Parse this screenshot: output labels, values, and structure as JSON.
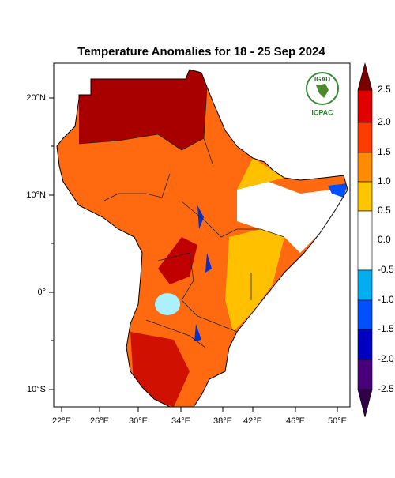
{
  "title": "Temperature Anomalies for 18 - 25 Sep 2024",
  "logo": {
    "top": "IGAD",
    "bottom": "ICPAC"
  },
  "lat_labels": [
    "20°N",
    "10°N",
    "0°",
    "10°S"
  ],
  "lon_labels": [
    "22°E",
    "26°E",
    "30°E",
    "34°E",
    "38°E",
    "42°E",
    "46°E",
    "50°E"
  ],
  "colorbar_labels": [
    "2.5",
    "2.0",
    "1.5",
    "1.0",
    "0.5",
    "0.0",
    "-0.5",
    "-1.0",
    "-1.5",
    "-2.0",
    "-2.5"
  ]
}
